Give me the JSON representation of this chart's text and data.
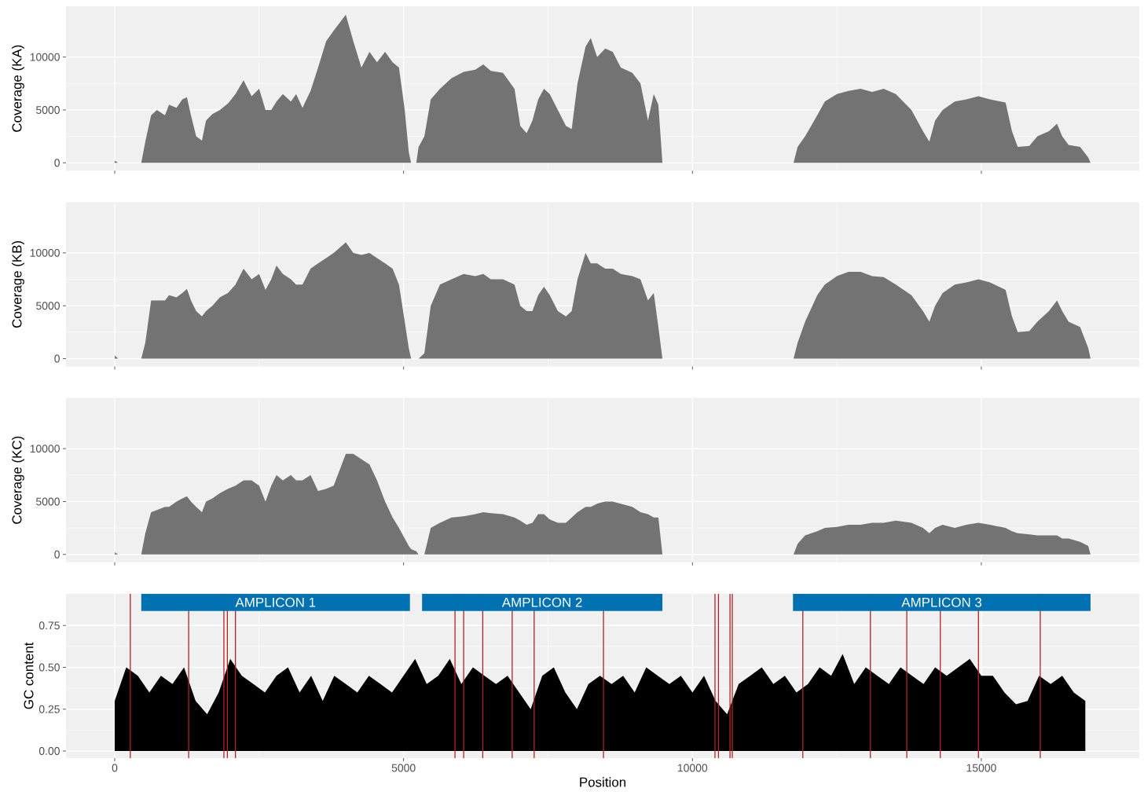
{
  "chart_data": [
    {
      "type": "area",
      "ylabel": "Coverage (KA)",
      "color": "#737373",
      "grid": true,
      "tick_labels": "y",
      "xlim": [
        -843,
        17734
      ],
      "ylim": [
        -740,
        14800
      ],
      "xticks": [
        0,
        5000,
        10000,
        15000
      ],
      "yticks": [
        0,
        5000,
        10000
      ],
      "x": [
        0,
        60,
        460,
        530,
        630,
        730,
        870,
        940,
        1070,
        1170,
        1250,
        1320,
        1410,
        1510,
        1580,
        1690,
        1820,
        1960,
        2090,
        2230,
        2370,
        2500,
        2610,
        2710,
        2800,
        2910,
        3050,
        3140,
        3250,
        3390,
        3520,
        3660,
        3790,
        4000,
        4130,
        4270,
        4410,
        4540,
        4680,
        4810,
        4920,
        5020,
        5090,
        5130,
        5220,
        5260,
        5360,
        5470,
        5630,
        5830,
        6040,
        6240,
        6380,
        6510,
        6720,
        6920,
        7020,
        7130,
        7230,
        7330,
        7430,
        7530,
        7670,
        7810,
        7910,
        8010,
        8150,
        8240,
        8350,
        8490,
        8620,
        8760,
        8960,
        9100,
        9230,
        9330,
        9410,
        9480,
        11750,
        11820,
        11950,
        12160,
        12290,
        12500,
        12700,
        12910,
        13110,
        13310,
        13520,
        13790,
        13990,
        14100,
        14200,
        14330,
        14540,
        14740,
        14950,
        15150,
        15420,
        15530,
        15630,
        15830,
        15970,
        16170,
        16310,
        16400,
        16510,
        16710,
        16850,
        16890
      ],
      "values": [
        200,
        0,
        0,
        2000,
        4500,
        5000,
        4500,
        5500,
        5200,
        6000,
        6200,
        4500,
        2500,
        2100,
        4000,
        4600,
        5000,
        5600,
        6500,
        7800,
        6300,
        7000,
        5000,
        5000,
        5800,
        6500,
        5800,
        6500,
        5200,
        6800,
        9000,
        11500,
        12500,
        14000,
        11500,
        9000,
        10500,
        9500,
        10500,
        9500,
        9000,
        5000,
        1000,
        0,
        0,
        1500,
        2500,
        6000,
        7000,
        8000,
        8600,
        8800,
        9300,
        8700,
        8500,
        7000,
        3500,
        2800,
        4000,
        6000,
        7000,
        6500,
        5000,
        3500,
        3200,
        7500,
        11000,
        11800,
        10000,
        10800,
        10500,
        9000,
        8500,
        7500,
        4000,
        6500,
        5500,
        0,
        0,
        1500,
        2500,
        4500,
        5800,
        6500,
        6800,
        7000,
        6700,
        7000,
        6500,
        5000,
        3000,
        2000,
        4000,
        5000,
        5800,
        6000,
        6300,
        6000,
        5700,
        3000,
        1500,
        1600,
        2500,
        3000,
        3700,
        2500,
        1700,
        1500,
        500,
        0
      ]
    },
    {
      "type": "area",
      "ylabel": "Coverage (KB)",
      "color": "#737373",
      "grid": true,
      "tick_labels": "y",
      "xlim": [
        -843,
        17734
      ],
      "ylim": [
        -740,
        14800
      ],
      "xticks": [
        0,
        5000,
        10000,
        15000
      ],
      "yticks": [
        0,
        5000,
        10000
      ],
      "x": [
        0,
        60,
        460,
        530,
        630,
        730,
        870,
        940,
        1070,
        1170,
        1250,
        1320,
        1410,
        1510,
        1580,
        1690,
        1820,
        1960,
        2090,
        2230,
        2370,
        2500,
        2610,
        2710,
        2800,
        2910,
        3050,
        3140,
        3250,
        3390,
        3520,
        3660,
        3790,
        4000,
        4130,
        4270,
        4410,
        4540,
        4680,
        4810,
        4920,
        5020,
        5090,
        5130,
        5220,
        5260,
        5360,
        5470,
        5630,
        5830,
        6040,
        6240,
        6380,
        6510,
        6720,
        6920,
        7020,
        7130,
        7230,
        7330,
        7430,
        7530,
        7670,
        7810,
        7910,
        8010,
        8150,
        8240,
        8350,
        8490,
        8620,
        8760,
        8960,
        9100,
        9230,
        9330,
        9410,
        9480,
        11750,
        11820,
        11950,
        12160,
        12290,
        12500,
        12700,
        12910,
        13110,
        13310,
        13520,
        13790,
        13990,
        14100,
        14200,
        14330,
        14540,
        14740,
        14950,
        15150,
        15420,
        15530,
        15630,
        15830,
        15970,
        16170,
        16310,
        16400,
        16510,
        16710,
        16850,
        16890
      ],
      "values": [
        300,
        0,
        0,
        1500,
        5500,
        5500,
        5500,
        6000,
        5800,
        6200,
        6600,
        5500,
        4500,
        4000,
        4500,
        5000,
        5800,
        6200,
        7000,
        8500,
        7500,
        8000,
        6500,
        7500,
        8800,
        8000,
        7500,
        7000,
        7000,
        8500,
        9000,
        9500,
        10000,
        11000,
        10000,
        9800,
        10000,
        9500,
        9000,
        8500,
        7000,
        3500,
        1000,
        0,
        0,
        0,
        500,
        5000,
        7000,
        7500,
        8000,
        7800,
        8000,
        7500,
        7500,
        7000,
        5000,
        4500,
        4500,
        6000,
        6800,
        6000,
        4500,
        4000,
        4500,
        7500,
        10000,
        9000,
        9000,
        8500,
        8500,
        8000,
        7800,
        7500,
        5500,
        6200,
        3000,
        0,
        0,
        1500,
        3500,
        6000,
        7000,
        7800,
        8200,
        8200,
        7800,
        7700,
        7000,
        6000,
        4500,
        3500,
        5000,
        6200,
        7000,
        7200,
        7500,
        7200,
        6500,
        4000,
        2500,
        2600,
        3500,
        4500,
        5500,
        4500,
        3500,
        3000,
        1000,
        0
      ]
    },
    {
      "type": "area",
      "ylabel": "Coverage (KC)",
      "color": "#737373",
      "grid": true,
      "tick_labels": "y",
      "xlim": [
        -843,
        17734
      ],
      "ylim": [
        -740,
        14800
      ],
      "xticks": [
        0,
        5000,
        10000,
        15000
      ],
      "yticks": [
        0,
        5000,
        10000
      ],
      "x": [
        0,
        60,
        460,
        530,
        630,
        730,
        870,
        940,
        1070,
        1170,
        1250,
        1320,
        1410,
        1510,
        1580,
        1690,
        1820,
        1960,
        2090,
        2230,
        2370,
        2500,
        2610,
        2710,
        2800,
        2910,
        3050,
        3140,
        3250,
        3390,
        3520,
        3660,
        3790,
        4000,
        4130,
        4270,
        4410,
        4540,
        4680,
        4810,
        4920,
        5020,
        5090,
        5130,
        5220,
        5260,
        5360,
        5470,
        5630,
        5830,
        6040,
        6240,
        6380,
        6510,
        6720,
        6920,
        7020,
        7130,
        7230,
        7330,
        7430,
        7530,
        7670,
        7810,
        7910,
        8010,
        8150,
        8240,
        8350,
        8490,
        8620,
        8760,
        8960,
        9100,
        9230,
        9330,
        9410,
        9480,
        11750,
        11820,
        11950,
        12160,
        12290,
        12500,
        12700,
        12910,
        13110,
        13310,
        13520,
        13790,
        13990,
        14100,
        14200,
        14330,
        14540,
        14740,
        14950,
        15150,
        15420,
        15530,
        15630,
        15830,
        15970,
        16170,
        16310,
        16400,
        16510,
        16710,
        16850,
        16890
      ],
      "values": [
        200,
        0,
        0,
        2000,
        4000,
        4200,
        4500,
        4500,
        5000,
        5300,
        5500,
        5000,
        4500,
        4000,
        5000,
        5300,
        5800,
        6200,
        6500,
        7000,
        7000,
        6500,
        5000,
        6500,
        7500,
        7000,
        7500,
        7000,
        7000,
        7500,
        6000,
        6200,
        6500,
        9500,
        9500,
        9000,
        8500,
        7000,
        5000,
        3500,
        2500,
        1500,
        800,
        500,
        300,
        0,
        0,
        2500,
        3000,
        3500,
        3600,
        3800,
        4000,
        3900,
        3800,
        3500,
        3200,
        2800,
        3000,
        3800,
        3800,
        3300,
        3000,
        3000,
        3500,
        4000,
        4500,
        4500,
        4800,
        5000,
        5000,
        4800,
        4500,
        4000,
        3800,
        3500,
        3500,
        0,
        0,
        1000,
        1800,
        2200,
        2500,
        2600,
        2800,
        2800,
        3000,
        3000,
        3200,
        3000,
        2500,
        2000,
        2500,
        2800,
        2500,
        2800,
        3000,
        2800,
        2500,
        2200,
        2000,
        1900,
        1800,
        1800,
        1800,
        1500,
        1500,
        1200,
        800,
        0
      ]
    },
    {
      "type": "area",
      "ylabel": "GC content",
      "xlabel": "Position",
      "color": "#000000",
      "grid": true,
      "xlim": [
        -843,
        17734
      ],
      "ylim": [
        -0.042,
        0.94
      ],
      "xticks": [
        0,
        5000,
        10000,
        15000
      ],
      "yticks": [
        {
          "value": 0,
          "label": "0.00"
        },
        {
          "value": 0.25,
          "label": "0.25"
        },
        {
          "value": 0.5,
          "label": "0.50"
        },
        {
          "value": 0.75,
          "label": "0.75"
        }
      ],
      "x": [
        0,
        200,
        400,
        600,
        800,
        1000,
        1200,
        1400,
        1600,
        1800,
        2000,
        2200,
        2400,
        2600,
        2800,
        3000,
        3200,
        3400,
        3600,
        3800,
        4000,
        4200,
        4400,
        4600,
        4800,
        5000,
        5200,
        5400,
        5600,
        5800,
        6000,
        6200,
        6400,
        6600,
        6800,
        7000,
        7200,
        7400,
        7600,
        7800,
        8000,
        8200,
        8400,
        8600,
        8800,
        9000,
        9200,
        9400,
        9600,
        9800,
        10000,
        10200,
        10400,
        10600,
        10800,
        11000,
        11200,
        11400,
        11600,
        11800,
        12000,
        12200,
        12400,
        12600,
        12800,
        13000,
        13200,
        13400,
        13600,
        13800,
        14000,
        14200,
        14400,
        14600,
        14800,
        15000,
        15200,
        15400,
        15600,
        15800,
        16000,
        16200,
        16400,
        16600,
        16800
      ],
      "values": [
        0.3,
        0.5,
        0.45,
        0.35,
        0.45,
        0.4,
        0.5,
        0.3,
        0.22,
        0.35,
        0.55,
        0.45,
        0.4,
        0.35,
        0.45,
        0.5,
        0.35,
        0.45,
        0.3,
        0.45,
        0.4,
        0.35,
        0.45,
        0.4,
        0.35,
        0.45,
        0.55,
        0.4,
        0.45,
        0.55,
        0.4,
        0.5,
        0.45,
        0.4,
        0.45,
        0.35,
        0.25,
        0.45,
        0.5,
        0.35,
        0.25,
        0.4,
        0.45,
        0.4,
        0.45,
        0.35,
        0.5,
        0.45,
        0.4,
        0.45,
        0.35,
        0.45,
        0.3,
        0.22,
        0.4,
        0.45,
        0.5,
        0.4,
        0.45,
        0.35,
        0.4,
        0.5,
        0.45,
        0.58,
        0.4,
        0.5,
        0.45,
        0.4,
        0.5,
        0.45,
        0.4,
        0.5,
        0.45,
        0.5,
        0.55,
        0.45,
        0.45,
        0.35,
        0.28,
        0.3,
        0.45,
        0.4,
        0.45,
        0.35,
        0.3
      ],
      "ref_lines": [
        {
          "axis": "x",
          "value": 270,
          "color": "#b22222"
        },
        {
          "axis": "x",
          "value": 1280,
          "color": "#b22222"
        },
        {
          "axis": "x",
          "value": 1890,
          "color": "#b22222"
        },
        {
          "axis": "x",
          "value": 1950,
          "color": "#b22222"
        },
        {
          "axis": "x",
          "value": 2090,
          "color": "#b22222"
        },
        {
          "axis": "x",
          "value": 5890,
          "color": "#b22222"
        },
        {
          "axis": "x",
          "value": 6040,
          "color": "#b22222"
        },
        {
          "axis": "x",
          "value": 6370,
          "color": "#b22222"
        },
        {
          "axis": "x",
          "value": 6880,
          "color": "#b22222"
        },
        {
          "axis": "x",
          "value": 7260,
          "color": "#b22222"
        },
        {
          "axis": "x",
          "value": 8460,
          "color": "#b22222"
        },
        {
          "axis": "x",
          "value": 10390,
          "color": "#b22222"
        },
        {
          "axis": "x",
          "value": 10450,
          "color": "#b22222"
        },
        {
          "axis": "x",
          "value": 10650,
          "color": "#b22222"
        },
        {
          "axis": "x",
          "value": 10690,
          "color": "#b22222"
        },
        {
          "axis": "x",
          "value": 11910,
          "color": "#b22222"
        },
        {
          "axis": "x",
          "value": 13080,
          "color": "#b22222"
        },
        {
          "axis": "x",
          "value": 13710,
          "color": "#b22222"
        },
        {
          "axis": "x",
          "value": 14290,
          "color": "#b22222"
        },
        {
          "axis": "x",
          "value": 14950,
          "color": "#b22222"
        },
        {
          "axis": "x",
          "value": 16020,
          "color": "#b22222"
        }
      ],
      "bands": [
        {
          "axis": "x",
          "from": 460,
          "to": 5110,
          "label": "AMPLICON 1",
          "color": "#0072b2"
        },
        {
          "axis": "x",
          "from": 5320,
          "to": 9480,
          "label": "AMPLICON 2",
          "color": "#0072b2"
        },
        {
          "axis": "x",
          "from": 11740,
          "to": 16890,
          "label": "AMPLICON 3",
          "color": "#0072b2"
        }
      ]
    }
  ]
}
